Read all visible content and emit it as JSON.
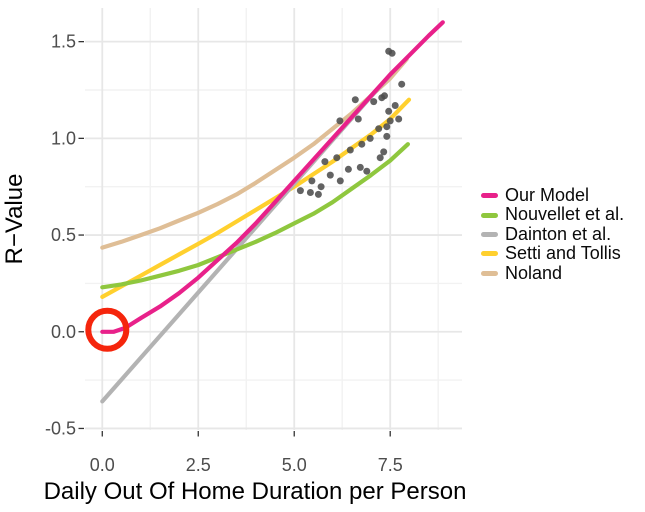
{
  "chart_data": {
    "type": "scatter",
    "title": "",
    "xlabel": "Daily Out Of Home Duration per Person",
    "ylabel": "R−Value",
    "xlim": [
      -0.45,
      9.37
    ],
    "ylim": [
      -0.508,
      1.674
    ],
    "x_ticks": [
      0.0,
      2.5,
      5.0,
      7.5
    ],
    "x_tick_labels": [
      "0.0",
      "2.5",
      "5.0",
      "7.5"
    ],
    "y_ticks": [
      -0.5,
      0.0,
      0.5,
      1.0,
      1.5
    ],
    "y_tick_labels": [
      "-0.5",
      "0.0",
      "0.5",
      "1.0",
      "1.5"
    ],
    "x_minor_ticks": [
      1.25,
      3.75,
      6.25,
      8.75
    ],
    "y_minor_ticks": [
      -0.25,
      0.25,
      0.75,
      1.25
    ],
    "grid": "major+minor",
    "legend_position": "right",
    "colors": {
      "axis_text": "#4D4D4D",
      "title_text": "#000000",
      "grid_major": "#E7E7E7",
      "grid_minor": "#F2F2F2",
      "tick": "#333333",
      "points": "#4D4D4D",
      "annotation": "#F5250C"
    },
    "series": [
      {
        "name": "Our Model",
        "color": "#E8218A",
        "type": "line",
        "points": [
          [
            0,
            0.0
          ],
          [
            0.3,
            0.0
          ],
          [
            0.6,
            0.02
          ],
          [
            1,
            0.07
          ],
          [
            1.5,
            0.13
          ],
          [
            2,
            0.2
          ],
          [
            2.5,
            0.28
          ],
          [
            3,
            0.37
          ],
          [
            3.5,
            0.46
          ],
          [
            4,
            0.56
          ],
          [
            4.5,
            0.67
          ],
          [
            5,
            0.78
          ],
          [
            5.5,
            0.89
          ],
          [
            6,
            1.0
          ],
          [
            6.5,
            1.11
          ],
          [
            7,
            1.22
          ],
          [
            7.5,
            1.33
          ],
          [
            8,
            1.43
          ],
          [
            8.5,
            1.53
          ],
          [
            8.87,
            1.6
          ]
        ]
      },
      {
        "name": "Nouvellet et al.",
        "color": "#8FC73E",
        "type": "line",
        "points": [
          [
            0,
            0.23
          ],
          [
            0.5,
            0.245
          ],
          [
            1,
            0.265
          ],
          [
            1.5,
            0.29
          ],
          [
            2,
            0.315
          ],
          [
            2.5,
            0.345
          ],
          [
            3,
            0.385
          ],
          [
            3.5,
            0.425
          ],
          [
            4,
            0.465
          ],
          [
            4.5,
            0.51
          ],
          [
            5,
            0.56
          ],
          [
            5.5,
            0.61
          ],
          [
            6,
            0.67
          ],
          [
            6.5,
            0.74
          ],
          [
            7,
            0.81
          ],
          [
            7.5,
            0.885
          ],
          [
            7.96,
            0.97
          ]
        ]
      },
      {
        "name": "Dainton et al.",
        "color": "#B3B3B3",
        "type": "line",
        "points": [
          [
            0,
            -0.36
          ],
          [
            7.55,
            1.34
          ]
        ]
      },
      {
        "name": "Setti and Tollis",
        "color": "#FFD02E",
        "type": "line",
        "points": [
          [
            0,
            0.18
          ],
          [
            0.5,
            0.235
          ],
          [
            1,
            0.29
          ],
          [
            1.5,
            0.345
          ],
          [
            2,
            0.4
          ],
          [
            2.5,
            0.455
          ],
          [
            3,
            0.51
          ],
          [
            3.5,
            0.57
          ],
          [
            4,
            0.63
          ],
          [
            4.5,
            0.69
          ],
          [
            5,
            0.75
          ],
          [
            5.5,
            0.815
          ],
          [
            6,
            0.88
          ],
          [
            6.5,
            0.95
          ],
          [
            7,
            1.02
          ],
          [
            7.5,
            1.1
          ],
          [
            7.99,
            1.2
          ]
        ]
      },
      {
        "name": "Noland",
        "color": "#DFBE96",
        "type": "line",
        "points": [
          [
            0,
            0.435
          ],
          [
            0.5,
            0.465
          ],
          [
            1,
            0.5
          ],
          [
            1.5,
            0.535
          ],
          [
            2,
            0.575
          ],
          [
            2.5,
            0.615
          ],
          [
            3,
            0.66
          ],
          [
            3.5,
            0.71
          ],
          [
            4,
            0.77
          ],
          [
            4.5,
            0.835
          ],
          [
            5,
            0.9
          ],
          [
            5.5,
            0.97
          ],
          [
            6,
            1.05
          ],
          [
            6.5,
            1.13
          ],
          [
            7,
            1.22
          ],
          [
            7.5,
            1.31
          ],
          [
            7.93,
            1.41
          ]
        ]
      }
    ],
    "observed_points": {
      "name": "Observed data",
      "values": [
        [
          5.16,
          0.73
        ],
        [
          5.42,
          0.72
        ],
        [
          5.63,
          0.71
        ],
        [
          5.46,
          0.78
        ],
        [
          5.7,
          0.75
        ],
        [
          5.8,
          0.88
        ],
        [
          5.94,
          0.81
        ],
        [
          6.11,
          0.9
        ],
        [
          6.19,
          1.09
        ],
        [
          6.2,
          0.78
        ],
        [
          6.41,
          0.84
        ],
        [
          6.46,
          0.94
        ],
        [
          6.59,
          1.2
        ],
        [
          6.67,
          1.1
        ],
        [
          6.72,
          0.85
        ],
        [
          6.76,
          0.97
        ],
        [
          6.89,
          0.83
        ],
        [
          6.98,
          1.0
        ],
        [
          7.07,
          1.19
        ],
        [
          7.2,
          1.05
        ],
        [
          7.24,
          0.9
        ],
        [
          7.28,
          1.21
        ],
        [
          7.33,
          0.93
        ],
        [
          7.35,
          1.22
        ],
        [
          7.41,
          1.06
        ],
        [
          7.41,
          1.01
        ],
        [
          7.46,
          1.14
        ],
        [
          7.46,
          1.45
        ],
        [
          7.5,
          1.09
        ],
        [
          7.55,
          1.44
        ],
        [
          7.63,
          1.17
        ],
        [
          7.72,
          1.1
        ],
        [
          7.8,
          1.28
        ]
      ]
    },
    "annotation": {
      "shape": "circle",
      "center": [
        0.13,
        0.01
      ],
      "radius_px": 19,
      "stroke_px": 6,
      "color": "#F5250C"
    }
  },
  "legend": {
    "items": [
      {
        "label": "Our Model"
      },
      {
        "label": "Nouvellet et al."
      },
      {
        "label": "Dainton et al."
      },
      {
        "label": "Setti and Tollis"
      },
      {
        "label": "Noland"
      }
    ]
  }
}
